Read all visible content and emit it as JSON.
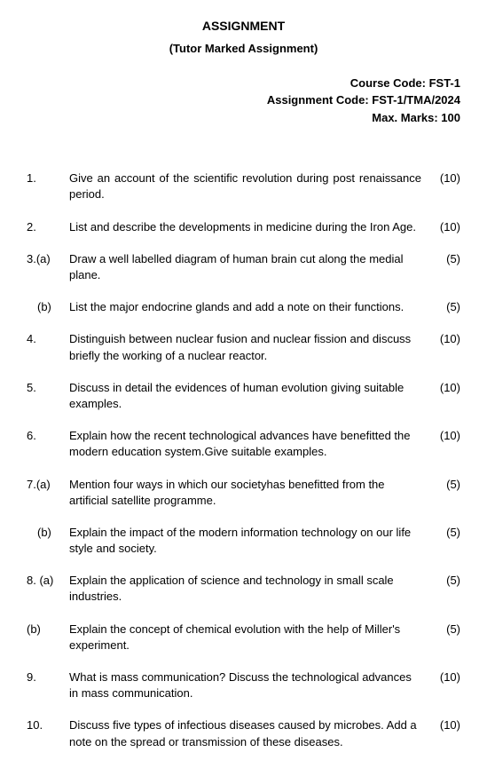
{
  "header": {
    "title": "ASSIGNMENT",
    "subtitle": "(Tutor Marked Assignment)"
  },
  "meta": {
    "course_code": "Course Code: FST-1",
    "assignment_code": "Assignment Code: FST-1/TMA/2024",
    "max_marks": "Max. Marks: 100"
  },
  "questions": [
    {
      "num": "1.",
      "text": "Give an account of the scientific revolution during post renaissance period.",
      "marks": "(10)",
      "justify": true
    },
    {
      "num": "2.",
      "text": "List and describe the developments in medicine during the Iron Age.",
      "marks": "(10)"
    },
    {
      "num": "3.(a)",
      "text": "Draw a well labelled diagram of human brain cut along the medial plane.",
      "marks": "(5)"
    },
    {
      "num": "(b)",
      "text": "List the major endocrine glands and add a note on their functions.",
      "marks": "(5)",
      "sub": true
    },
    {
      "num": "4.",
      "text": "Distinguish between nuclear fusion and nuclear fission and discuss briefly the working of a nuclear reactor.",
      "marks": "(10)"
    },
    {
      "num": "5.",
      "text": "Discuss in detail the evidences of human evolution giving suitable examples.",
      "marks": "(10)"
    },
    {
      "num": "6.",
      "text": "Explain how the recent technological advances have benefitted the modern education system.Give suitable examples.",
      "marks": "(10)"
    },
    {
      "num": "7.(a)",
      "text": "Mention four ways in which our societyhas benefitted from the artificial satellite programme.",
      "marks": "(5)"
    },
    {
      "num": "(b)",
      "text": "Explain the impact of the modern information technology on our life style and society.",
      "marks": "(5)",
      "sub": true
    },
    {
      "num": "8. (a)",
      "text": "Explain the application of science and technology in small scale industries.",
      "marks": "(5)"
    },
    {
      "num": "(b)",
      "text": "Explain the concept of chemical evolution with the help of Miller's experiment.",
      "marks": "(5)"
    },
    {
      "num": "9.",
      "text": "What is mass communication? Discuss the technological advances in mass communication.",
      "marks": "(10)"
    },
    {
      "num": "10.",
      "text": "Discuss five types of infectious diseases caused by microbes. Add a note on the spread or transmission of these diseases.",
      "marks": "(10)"
    }
  ]
}
